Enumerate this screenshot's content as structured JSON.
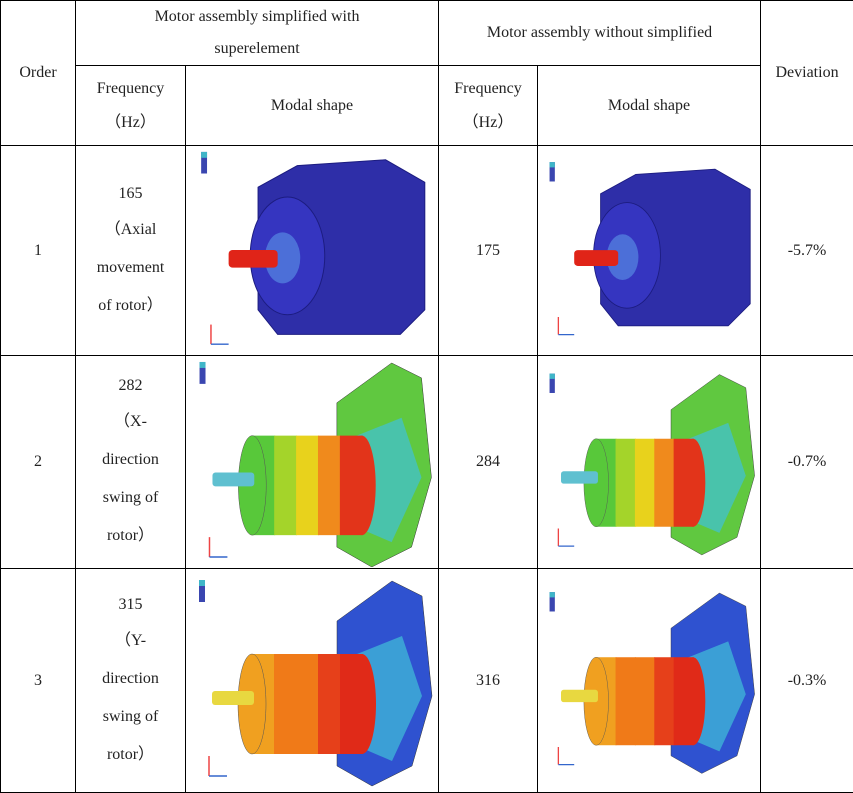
{
  "table": {
    "header": {
      "order": "Order",
      "group_simplified": "Motor assembly simplified with superelement",
      "group_full": "Motor assembly without simplified",
      "deviation": "Deviation",
      "frequency": [
        "Frequency",
        "（Hz）"
      ],
      "frequency_full": [
        "Frequency",
        "（Hz）"
      ],
      "modal_shape": "Modal shape",
      "modal_shape_full": "Modal shape"
    },
    "rows": [
      {
        "order": "1",
        "frequency": "165",
        "description": "（Axial movement of rotor）",
        "frequency_full": "175",
        "deviation": "-5.7%"
      },
      {
        "order": "2",
        "frequency": "282",
        "description": "（X-direction swing of rotor）",
        "frequency_full": "284",
        "deviation": "-0.7%"
      },
      {
        "order": "3",
        "frequency": "315",
        "description": "（Y-direction swing of rotor）",
        "frequency_full": "316",
        "deviation": "-0.3%"
      }
    ]
  }
}
